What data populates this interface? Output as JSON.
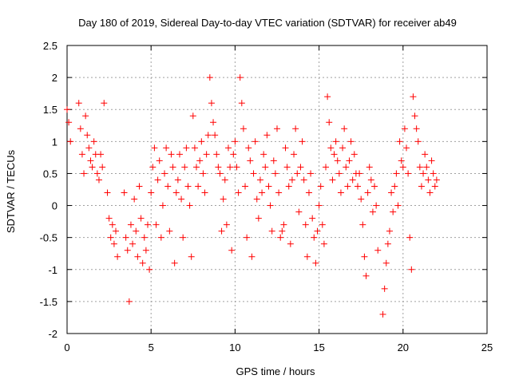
{
  "chart_data": {
    "type": "scatter",
    "title": "Day 180 of 2019, Sidereal Day-to-day VTEC variation (SDTVAR) for receiver ab49",
    "xlabel": "GPS time / hours",
    "ylabel": "SDTVAR / TECUs",
    "xlim": [
      0,
      25
    ],
    "ylim": [
      -2,
      2.5
    ],
    "xticks": [
      0,
      5,
      10,
      15,
      20,
      25
    ],
    "yticks": [
      -2,
      -1.5,
      -1,
      -0.5,
      0,
      0.5,
      1,
      1.5,
      2,
      2.5
    ],
    "grid": true,
    "marker": "+",
    "color": "#ff0000",
    "series": [
      {
        "name": "SDTVAR",
        "x": [
          0.0,
          0.1,
          0.2,
          0.7,
          0.8,
          0.9,
          1.0,
          1.1,
          1.2,
          1.3,
          1.4,
          1.5,
          1.6,
          1.7,
          1.8,
          1.9,
          2.0,
          2.1,
          2.2,
          2.4,
          2.5,
          2.6,
          2.7,
          2.8,
          2.9,
          3.0,
          3.4,
          3.5,
          3.6,
          3.7,
          3.8,
          3.9,
          4.0,
          4.1,
          4.2,
          4.3,
          4.4,
          4.5,
          4.6,
          4.7,
          4.8,
          4.9,
          5.0,
          5.1,
          5.2,
          5.3,
          5.4,
          5.5,
          5.6,
          5.7,
          5.8,
          5.9,
          6.0,
          6.1,
          6.2,
          6.3,
          6.4,
          6.5,
          6.6,
          6.7,
          6.8,
          6.9,
          7.0,
          7.1,
          7.2,
          7.3,
          7.4,
          7.5,
          7.6,
          7.7,
          7.8,
          7.9,
          8.0,
          8.1,
          8.2,
          8.3,
          8.4,
          8.5,
          8.6,
          8.7,
          8.8,
          8.9,
          9.0,
          9.1,
          9.2,
          9.3,
          9.4,
          9.5,
          9.6,
          9.7,
          9.8,
          9.9,
          10.0,
          10.1,
          10.2,
          10.3,
          10.4,
          10.5,
          10.6,
          10.7,
          10.8,
          10.9,
          11.0,
          11.1,
          11.2,
          11.3,
          11.4,
          11.5,
          11.6,
          11.7,
          11.8,
          11.9,
          12.0,
          12.1,
          12.2,
          12.3,
          12.4,
          12.5,
          12.6,
          12.7,
          12.8,
          12.9,
          13.0,
          13.1,
          13.2,
          13.3,
          13.4,
          13.5,
          13.6,
          13.7,
          13.8,
          13.9,
          14.0,
          14.1,
          14.2,
          14.3,
          14.4,
          14.5,
          14.6,
          14.7,
          14.8,
          14.9,
          15.0,
          15.1,
          15.2,
          15.3,
          15.4,
          15.5,
          15.6,
          15.7,
          15.8,
          15.9,
          16.0,
          16.1,
          16.2,
          16.3,
          16.4,
          16.5,
          16.6,
          16.7,
          16.8,
          16.9,
          17.0,
          17.1,
          17.2,
          17.3,
          17.4,
          17.5,
          17.6,
          17.7,
          17.8,
          17.9,
          18.0,
          18.1,
          18.2,
          18.3,
          18.4,
          18.5,
          18.8,
          18.9,
          19.0,
          19.1,
          19.2,
          19.3,
          19.4,
          19.5,
          19.6,
          19.7,
          19.8,
          19.9,
          20.0,
          20.1,
          20.2,
          20.3,
          20.4,
          20.5,
          20.6,
          20.7,
          20.8,
          20.9,
          21.0,
          21.1,
          21.2,
          21.3,
          21.4,
          21.5,
          21.6,
          21.7,
          21.8,
          21.9,
          22.0
        ],
        "y": [
          1.5,
          1.3,
          1.0,
          1.6,
          1.2,
          0.8,
          0.5,
          1.4,
          1.1,
          0.9,
          0.7,
          0.6,
          1.0,
          0.8,
          0.5,
          0.4,
          0.8,
          0.6,
          1.6,
          0.2,
          -0.2,
          -0.5,
          -0.3,
          -0.6,
          -0.4,
          -0.8,
          0.2,
          -0.5,
          -0.7,
          -1.5,
          -0.3,
          -0.6,
          0.1,
          -0.4,
          -0.8,
          0.3,
          -0.2,
          -0.9,
          -0.5,
          -0.7,
          -0.3,
          -1.0,
          0.2,
          0.6,
          0.9,
          -0.3,
          0.4,
          0.7,
          -0.5,
          0.0,
          0.5,
          0.9,
          0.3,
          -0.4,
          0.8,
          0.6,
          -0.9,
          0.2,
          0.4,
          0.8,
          0.1,
          -0.5,
          0.6,
          0.9,
          0.3,
          0.0,
          -0.8,
          1.4,
          0.9,
          0.6,
          0.3,
          0.7,
          1.0,
          0.5,
          0.2,
          0.8,
          1.1,
          2.0,
          1.6,
          1.3,
          1.1,
          0.8,
          0.6,
          0.5,
          -0.4,
          0.1,
          0.4,
          -0.3,
          0.9,
          0.6,
          -0.7,
          0.8,
          1.0,
          0.6,
          0.2,
          2.0,
          1.6,
          1.2,
          0.3,
          -0.5,
          0.9,
          0.7,
          -0.8,
          0.5,
          1.0,
          0.1,
          -0.2,
          0.4,
          0.2,
          0.8,
          0.6,
          1.1,
          0.3,
          0.0,
          -0.4,
          0.7,
          0.5,
          1.2,
          0.2,
          -0.5,
          -0.4,
          -0.3,
          0.9,
          0.6,
          0.3,
          -0.6,
          0.4,
          0.8,
          1.2,
          0.5,
          -0.1,
          0.6,
          1.0,
          0.4,
          -0.3,
          -0.8,
          0.2,
          0.5,
          -0.2,
          -0.5,
          -0.9,
          -0.4,
          0.0,
          0.3,
          -0.3,
          -0.6,
          0.6,
          1.7,
          1.3,
          0.9,
          0.4,
          0.8,
          1.0,
          0.7,
          0.5,
          0.2,
          0.9,
          1.2,
          0.6,
          0.3,
          0.7,
          1.0,
          0.4,
          0.8,
          0.5,
          0.3,
          0.5,
          0.1,
          -0.3,
          -0.8,
          -1.1,
          0.2,
          0.6,
          0.4,
          -0.1,
          0.3,
          0.0,
          -0.7,
          -1.7,
          -1.3,
          -0.9,
          -0.6,
          -0.4,
          0.2,
          -0.1,
          0.3,
          0.5,
          0.0,
          1.0,
          0.7,
          0.6,
          1.2,
          0.9,
          0.5,
          -0.5,
          -1.0,
          1.7,
          1.4,
          1.2,
          1.0,
          0.6,
          0.3,
          0.5,
          0.8,
          0.6,
          0.4,
          0.2,
          0.7,
          0.5,
          0.3,
          0.4
        ]
      }
    ]
  }
}
